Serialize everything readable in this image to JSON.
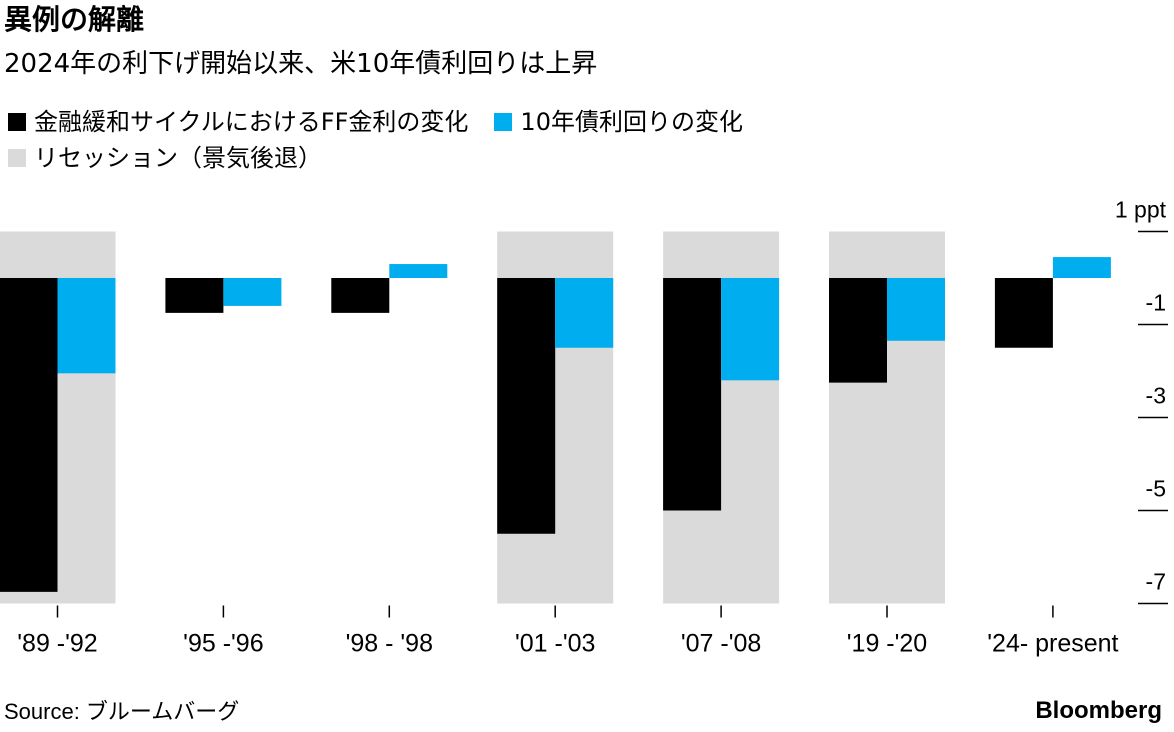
{
  "header": {
    "title": "異例の解離",
    "subtitle": "2024年の利下げ開始以来、米10年債利回りは上昇"
  },
  "legend": {
    "ff": {
      "label": "金融緩和サイクルにおけるFF金利の変化",
      "color": "#000000"
    },
    "tenyr": {
      "label": "10年債利回りの変化",
      "color": "#00AEEF"
    },
    "recession": {
      "label": "リセッション（景気後退）",
      "color": "#DADADA"
    }
  },
  "footer": {
    "source": "Source: ブルームバーグ",
    "brand": "Bloomberg"
  },
  "chart_data": {
    "type": "bar",
    "categories": [
      "'89 -'92",
      "'95 -'96",
      "'98 - '98",
      "'01 -'03",
      "'07 -'08",
      "'19 -'20",
      "'24- present"
    ],
    "series": [
      {
        "name": "金融緩和サイクルにおけるFF金利の変化",
        "color": "#000000",
        "values": [
          -6.75,
          -0.75,
          -0.75,
          -5.5,
          -5.0,
          -2.25,
          -1.5
        ]
      },
      {
        "name": "10年債利回りの変化",
        "color": "#00AEEF",
        "values": [
          -2.05,
          -0.6,
          0.3,
          -1.5,
          -2.2,
          -1.35,
          0.45
        ]
      }
    ],
    "recession": [
      true,
      false,
      false,
      true,
      true,
      true,
      false
    ],
    "y_ticks": [
      1,
      -1,
      -3,
      -5,
      -7
    ],
    "y_tick_labels": [
      "1 ppt",
      "-1",
      "-3",
      "-5",
      "-7"
    ],
    "ylim": [
      -7,
      1
    ],
    "ylabel": "",
    "xlabel": "",
    "grid": false,
    "legend_position": "top-left"
  }
}
